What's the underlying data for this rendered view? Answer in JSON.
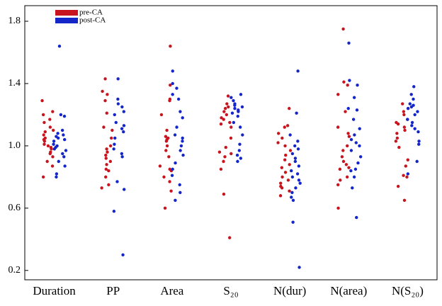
{
  "chart_data": {
    "type": "strip",
    "categories": [
      "Duration",
      "PP",
      "Area",
      "S₂₀",
      "N(dur)",
      "N(area)",
      "N(S₂₀)"
    ],
    "series": [
      {
        "name": "pre-CA",
        "color": "#c8141e",
        "values": [
          [
            1.29,
            1.22,
            1.2,
            1.17,
            1.15,
            1.12,
            1.1,
            1.09,
            1.07,
            1.05,
            1.04,
            1.03,
            1.01,
            1.0,
            0.99,
            0.98,
            0.96,
            0.95,
            0.93,
            0.9,
            0.87,
            0.8
          ],
          [
            1.43,
            1.35,
            1.33,
            1.29,
            1.21,
            1.12,
            1.1,
            1.05,
            1.0,
            0.98,
            0.96,
            0.94,
            0.92,
            0.9,
            0.88,
            0.85,
            0.84,
            0.8,
            0.75,
            0.73
          ],
          [
            1.64,
            1.39,
            1.3,
            1.29,
            1.2,
            1.1,
            1.06,
            1.05,
            1.04,
            1.03,
            1.0,
            0.97,
            0.93,
            0.87,
            0.85,
            0.84,
            0.8,
            0.77,
            0.71,
            0.6
          ],
          [
            1.32,
            1.27,
            1.25,
            1.24,
            1.22,
            1.2,
            1.18,
            1.17,
            1.15,
            1.14,
            1.12,
            1.05,
            0.99,
            0.96,
            0.95,
            0.93,
            0.9,
            0.85,
            0.69,
            0.41
          ],
          [
            1.24,
            1.13,
            1.12,
            1.08,
            1.05,
            1.02,
            1.0,
            0.97,
            0.94,
            0.91,
            0.88,
            0.86,
            0.83,
            0.8,
            0.78,
            0.76,
            0.74,
            0.73,
            0.71,
            0.68
          ],
          [
            1.75,
            1.41,
            1.39,
            1.33,
            1.22,
            1.12,
            1.08,
            1.06,
            1.0,
            0.97,
            0.93,
            0.9,
            0.88,
            0.86,
            0.85,
            0.8,
            0.78,
            0.75,
            0.6
          ],
          [
            1.27,
            1.24,
            1.22,
            1.2,
            1.17,
            1.15,
            1.14,
            1.12,
            1.1,
            1.08,
            1.05,
            1.03,
            0.99,
            0.91,
            0.87,
            0.81,
            0.8,
            0.74,
            0.65
          ]
        ]
      },
      {
        "name": "post-CA",
        "color": "#1426c8",
        "values": [
          [
            1.64,
            1.2,
            1.19,
            1.1,
            1.08,
            1.07,
            1.06,
            1.05,
            1.04,
            1.03,
            1.01,
            1.0,
            0.99,
            0.98,
            0.97,
            0.95,
            0.93,
            0.9,
            0.87,
            0.82,
            0.8
          ],
          [
            1.43,
            1.3,
            1.27,
            1.25,
            1.22,
            1.2,
            1.15,
            1.13,
            1.11,
            1.09,
            1.05,
            1.01,
            0.98,
            0.95,
            0.93,
            0.77,
            0.72,
            0.58,
            0.3
          ],
          [
            1.48,
            1.4,
            1.37,
            1.33,
            1.3,
            1.22,
            1.18,
            1.12,
            1.07,
            1.05,
            1.03,
            1.0,
            0.97,
            0.94,
            0.89,
            0.85,
            0.81,
            0.75,
            0.7,
            0.65
          ],
          [
            1.33,
            1.31,
            1.29,
            1.27,
            1.26,
            1.25,
            1.24,
            1.23,
            1.22,
            1.21,
            1.19,
            1.15,
            1.12,
            1.07,
            1.01,
            0.97,
            0.94,
            0.92,
            0.9
          ],
          [
            1.48,
            1.21,
            1.07,
            1.03,
            1.0,
            0.98,
            0.95,
            0.92,
            0.9,
            0.87,
            0.84,
            0.82,
            0.8,
            0.78,
            0.76,
            0.73,
            0.7,
            0.67,
            0.65,
            0.51,
            0.22
          ],
          [
            1.66,
            1.42,
            1.39,
            1.31,
            1.24,
            1.23,
            1.17,
            1.11,
            1.07,
            1.04,
            1.02,
            1.0,
            0.97,
            0.93,
            0.89,
            0.85,
            0.84,
            0.8,
            0.73,
            0.54
          ],
          [
            1.38,
            1.33,
            1.3,
            1.27,
            1.26,
            1.25,
            1.24,
            1.22,
            1.2,
            1.17,
            1.15,
            1.13,
            1.11,
            1.09,
            1.03,
            1.01,
            0.9,
            0.82
          ]
        ]
      }
    ],
    "ylim": [
      0.14,
      1.9
    ],
    "yticks": [
      0.2,
      0.6,
      {
        "value": 1,
        "label": "1.0"
      },
      1.4,
      1.8
    ],
    "legend": "upper left",
    "grid": false
  }
}
